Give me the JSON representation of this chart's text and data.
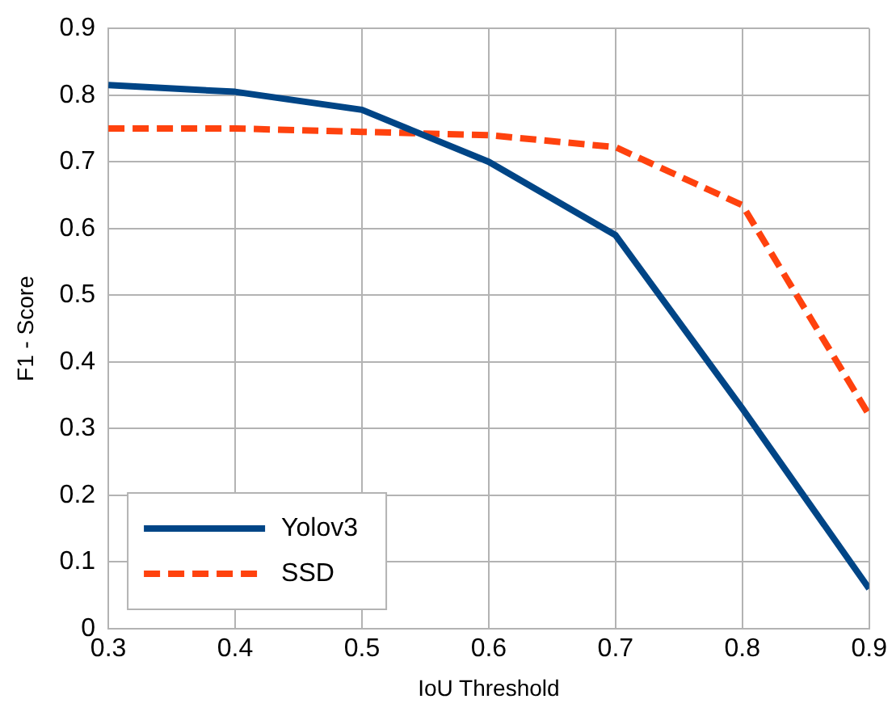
{
  "chart_data": {
    "type": "line",
    "xlabel": "IoU Threshold",
    "ylabel": "F1 - Score",
    "x": [
      0.3,
      0.4,
      0.5,
      0.6,
      0.7,
      0.8,
      0.9
    ],
    "series": [
      {
        "name": "Yolov3",
        "color": "#004586",
        "line_style": "solid",
        "values": [
          0.815,
          0.805,
          0.778,
          0.7,
          0.59,
          0.33,
          0.06
        ]
      },
      {
        "name": "SSD",
        "color": "#ff420e",
        "line_style": "dashed",
        "values": [
          0.75,
          0.75,
          0.745,
          0.74,
          0.722,
          0.635,
          0.32
        ]
      }
    ],
    "xlim": [
      0.3,
      0.9
    ],
    "xticks": [
      0.3,
      0.4,
      0.5,
      0.6,
      0.7,
      0.8,
      0.9
    ],
    "ylim": [
      0,
      0.9
    ],
    "yticks": [
      0,
      0.1,
      0.2,
      0.3,
      0.4,
      0.5,
      0.6,
      0.7,
      0.8,
      0.9
    ],
    "grid": true,
    "legend": "bottom left",
    "marker": "none"
  }
}
